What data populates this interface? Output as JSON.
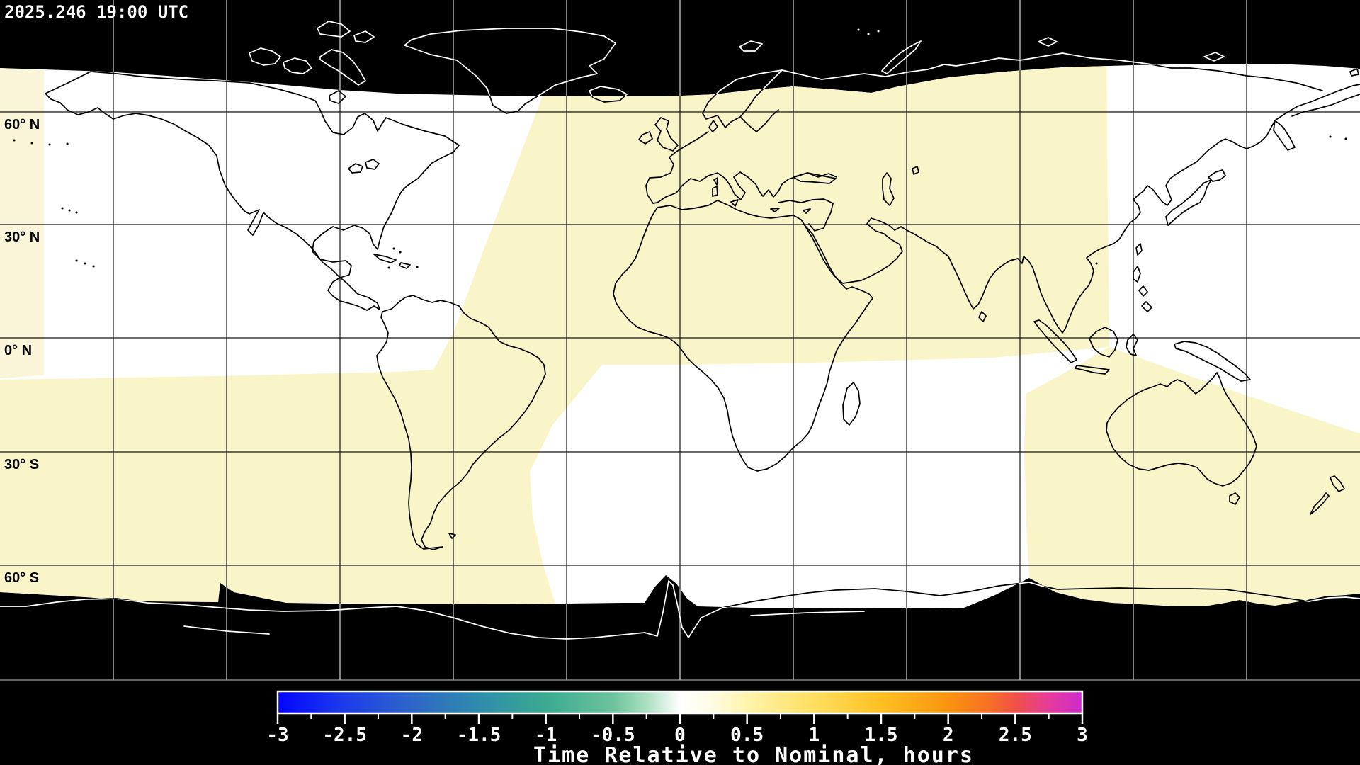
{
  "header": {
    "timestamp": "2025.246 19:00 UTC"
  },
  "map": {
    "lat_labels": [
      "60° N",
      "30° N",
      "0° N",
      "30° S",
      "60° S"
    ],
    "coastline_color_on_dark": "#ffffff",
    "coastline_color_on_light": "#000000",
    "nodata_color": "#000000",
    "region_colors": {
      "near_zero_white": "#ffffff",
      "slight_positive_cream": "#fffdf0",
      "left_edge_strip": "#faf5d8",
      "positive_pale_yellow": "#faf5c9"
    }
  },
  "colorbar": {
    "title": "Time Relative to Nominal, hours",
    "min": -3,
    "max": 3,
    "tick_labels": [
      "-3",
      "-2.5",
      "-2",
      "-1.5",
      "-1",
      "-0.5",
      "0",
      "0.5",
      "1",
      "1.5",
      "2",
      "2.5",
      "3"
    ],
    "tick_values": [
      -3,
      -2.5,
      -2,
      -1.5,
      -1,
      -0.5,
      0,
      0.5,
      1,
      1.5,
      2,
      2.5,
      3
    ],
    "minor_tick_step": 0.25,
    "gradient": [
      {
        "stop": 0.0,
        "color": "#0404fe"
      },
      {
        "stop": 0.083,
        "color": "#1d3ceb"
      },
      {
        "stop": 0.167,
        "color": "#2e66c8"
      },
      {
        "stop": 0.25,
        "color": "#2f8cac"
      },
      {
        "stop": 0.333,
        "color": "#3aaa90"
      },
      {
        "stop": 0.417,
        "color": "#6cc39c"
      },
      {
        "stop": 0.458,
        "color": "#aadfc0"
      },
      {
        "stop": 0.5,
        "color": "#ffffff"
      },
      {
        "stop": 0.535,
        "color": "#fffce8"
      },
      {
        "stop": 0.583,
        "color": "#fff4ae"
      },
      {
        "stop": 0.667,
        "color": "#ffdf60"
      },
      {
        "stop": 0.75,
        "color": "#fdc022"
      },
      {
        "stop": 0.833,
        "color": "#f9940f"
      },
      {
        "stop": 0.88,
        "color": "#f77322"
      },
      {
        "stop": 0.917,
        "color": "#f15148"
      },
      {
        "stop": 0.958,
        "color": "#e63b9a"
      },
      {
        "stop": 1.0,
        "color": "#cd2bcd"
      }
    ]
  },
  "chart_data": {
    "type": "heatmap",
    "title": "Time Relative to Nominal, hours",
    "timestamp": "2025.246 19:00 UTC",
    "projection": "equirectangular world map, 90N-90S, 180W-180E",
    "colorbar_range": [
      -3,
      3
    ],
    "colorbar_tick_labels": [
      "-3",
      "-2.5",
      "-2",
      "-1.5",
      "-1",
      "-0.5",
      "0",
      "0.5",
      "1",
      "1.5",
      "2",
      "2.5",
      "3"
    ],
    "latitude_gridlines_deg": [
      60,
      30,
      0,
      -30,
      -60
    ],
    "longitude_gridline_spacing_deg": 30,
    "regions": [
      {
        "area": "high Arctic band and Antarctic band",
        "value_hours": null,
        "note": "black = no data"
      },
      {
        "area": "Americas / east Pacific longitudes",
        "value_hours": 0.05
      },
      {
        "area": "far west edge strip",
        "value_hours": 0.3
      },
      {
        "area": "Europe / Africa / Asia broad swath",
        "value_hours": 0.35
      },
      {
        "area": "south-central Atlantic swath and west Pacific north swath",
        "value_hours": 0.0
      },
      {
        "area": "Australia / southwest Pacific south swath",
        "value_hours": 0.35
      }
    ],
    "legend_position": "bottom",
    "grid": true
  }
}
